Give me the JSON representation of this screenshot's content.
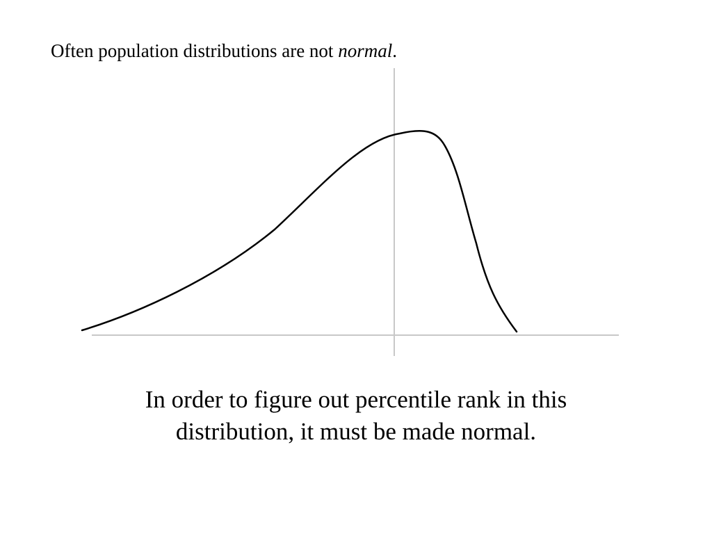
{
  "slide": {
    "heading": {
      "lead": "Often population distributions are not ",
      "emphasis": "normal",
      "trail": "."
    },
    "caption": {
      "line1": "In order to figure out percentile rank in this",
      "line2": "distribution, it must be made normal."
    }
  },
  "diagram": {
    "curve_shape": "left-skewed",
    "curve_color": "#000000",
    "axis_color": "#c8c8c8"
  }
}
